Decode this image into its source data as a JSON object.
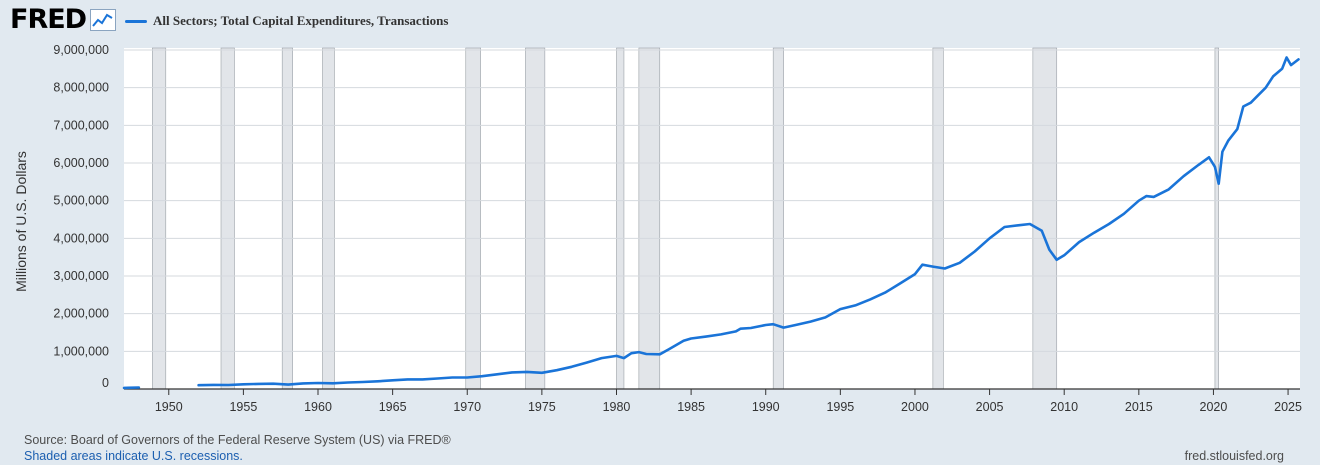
{
  "brand": {
    "logo_text": "FRED",
    "logo_icon": "line-chart-icon"
  },
  "legend": {
    "label": "All Sectors; Total Capital Expenditures, Transactions",
    "color": "#1a74d8"
  },
  "footer": {
    "source": "Source: Board of Governors of the Federal Reserve System (US) via FRED®",
    "note": "Shaded areas indicate U.S. recessions.",
    "site": "fred.stlouisfed.org"
  },
  "chart_data": {
    "type": "line",
    "title": "",
    "xlabel": "",
    "ylabel": "Millions of U.S. Dollars",
    "xlim": [
      1947.0,
      2025.8
    ],
    "ylim": [
      0,
      9000000
    ],
    "x_ticks": [
      1950,
      1955,
      1960,
      1965,
      1970,
      1975,
      1980,
      1985,
      1990,
      1995,
      2000,
      2005,
      2010,
      2015,
      2020,
      2025
    ],
    "y_ticks": [
      0,
      1000000,
      2000000,
      3000000,
      4000000,
      5000000,
      6000000,
      7000000,
      8000000,
      9000000
    ],
    "y_tick_labels": [
      "0",
      "1,000,000",
      "2,000,000",
      "3,000,000",
      "4,000,000",
      "5,000,000",
      "6,000,000",
      "7,000,000",
      "8,000,000",
      "9,000,000"
    ],
    "grid": true,
    "line_color": "#1a74d8",
    "recession_color": "#e2e5e9",
    "recessions": [
      [
        1948.9,
        1949.8
      ],
      [
        1953.5,
        1954.4
      ],
      [
        1957.6,
        1958.3
      ],
      [
        1960.3,
        1961.1
      ],
      [
        1969.9,
        1970.9
      ],
      [
        1973.9,
        1975.2
      ],
      [
        1980.0,
        1980.5
      ],
      [
        1981.5,
        1982.9
      ],
      [
        1990.5,
        1991.2
      ],
      [
        2001.2,
        2001.9
      ],
      [
        2007.9,
        2009.5
      ],
      [
        2020.1,
        2020.35
      ]
    ],
    "series": [
      {
        "name": "All Sectors; Total Capital Expenditures, Transactions",
        "segments": [
          [
            [
              1947.0,
              30000
            ],
            [
              1948.0,
              40000
            ]
          ],
          [
            [
              1952.0,
              100000
            ],
            [
              1953.0,
              110000
            ],
            [
              1954.0,
              105000
            ],
            [
              1955.0,
              125000
            ],
            [
              1956.0,
              135000
            ],
            [
              1957.0,
              140000
            ],
            [
              1958.0,
              118000
            ],
            [
              1959.0,
              150000
            ],
            [
              1960.0,
              160000
            ],
            [
              1961.0,
              152000
            ],
            [
              1962.0,
              172000
            ],
            [
              1963.0,
              185000
            ],
            [
              1964.0,
              205000
            ],
            [
              1965.0,
              230000
            ],
            [
              1966.0,
              255000
            ],
            [
              1967.0,
              255000
            ],
            [
              1968.0,
              280000
            ],
            [
              1969.0,
              305000
            ],
            [
              1970.0,
              305000
            ],
            [
              1971.0,
              340000
            ],
            [
              1972.0,
              390000
            ],
            [
              1973.0,
              440000
            ],
            [
              1974.0,
              455000
            ],
            [
              1975.0,
              430000
            ],
            [
              1976.0,
              500000
            ],
            [
              1977.0,
              590000
            ],
            [
              1978.0,
              700000
            ],
            [
              1979.0,
              820000
            ],
            [
              1980.0,
              880000
            ],
            [
              1980.5,
              820000
            ],
            [
              1981.0,
              950000
            ],
            [
              1981.5,
              980000
            ],
            [
              1982.0,
              930000
            ],
            [
              1982.9,
              920000
            ],
            [
              1983.5,
              1050000
            ],
            [
              1984.5,
              1280000
            ],
            [
              1985.0,
              1340000
            ],
            [
              1986.0,
              1390000
            ],
            [
              1987.0,
              1450000
            ],
            [
              1988.0,
              1530000
            ],
            [
              1988.3,
              1600000
            ],
            [
              1989.0,
              1620000
            ],
            [
              1990.0,
              1700000
            ],
            [
              1990.5,
              1720000
            ],
            [
              1991.2,
              1630000
            ],
            [
              1992.0,
              1700000
            ],
            [
              1993.0,
              1790000
            ],
            [
              1994.0,
              1900000
            ],
            [
              1995.0,
              2120000
            ],
            [
              1996.0,
              2220000
            ],
            [
              1997.0,
              2380000
            ],
            [
              1998.0,
              2560000
            ],
            [
              1999.0,
              2800000
            ],
            [
              2000.0,
              3050000
            ],
            [
              2000.5,
              3300000
            ],
            [
              2001.2,
              3250000
            ],
            [
              2002.0,
              3200000
            ],
            [
              2003.0,
              3350000
            ],
            [
              2004.0,
              3650000
            ],
            [
              2005.0,
              4000000
            ],
            [
              2006.0,
              4300000
            ],
            [
              2007.0,
              4350000
            ],
            [
              2007.7,
              4380000
            ],
            [
              2008.5,
              4200000
            ],
            [
              2009.0,
              3700000
            ],
            [
              2009.5,
              3430000
            ],
            [
              2010.0,
              3550000
            ],
            [
              2011.0,
              3900000
            ],
            [
              2012.0,
              4150000
            ],
            [
              2013.0,
              4380000
            ],
            [
              2014.0,
              4650000
            ],
            [
              2015.0,
              5000000
            ],
            [
              2015.5,
              5120000
            ],
            [
              2016.0,
              5100000
            ],
            [
              2017.0,
              5300000
            ],
            [
              2018.0,
              5650000
            ],
            [
              2019.0,
              5950000
            ],
            [
              2019.7,
              6150000
            ],
            [
              2020.1,
              5900000
            ],
            [
              2020.35,
              5450000
            ],
            [
              2020.6,
              6300000
            ],
            [
              2021.0,
              6600000
            ],
            [
              2021.6,
              6900000
            ],
            [
              2022.0,
              7500000
            ],
            [
              2022.5,
              7600000
            ],
            [
              2023.0,
              7800000
            ],
            [
              2023.5,
              8000000
            ],
            [
              2024.0,
              8300000
            ],
            [
              2024.6,
              8500000
            ],
            [
              2024.9,
              8800000
            ],
            [
              2025.2,
              8600000
            ],
            [
              2025.7,
              8750000
            ]
          ]
        ]
      }
    ]
  }
}
